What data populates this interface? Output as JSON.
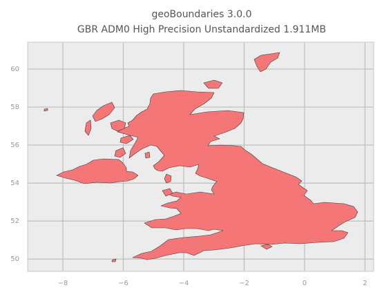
{
  "chart_data": {
    "type": "map",
    "title": "geoBoundaries 3.0.0",
    "subtitle": "GBR ADM0 High Precision Unstandardized 1.911MB",
    "xlim": [
      -9.166,
      2.286
    ],
    "ylim": [
      49.35,
      61.42
    ],
    "xticks": [
      {
        "value": -8,
        "label": "−8"
      },
      {
        "value": -6,
        "label": "−6"
      },
      {
        "value": -4,
        "label": "−4"
      },
      {
        "value": -2,
        "label": "−2"
      },
      0,
      2
    ],
    "yticks": [
      50,
      52,
      54,
      56,
      58,
      60
    ],
    "grid": true,
    "color": "#f47676"
  }
}
